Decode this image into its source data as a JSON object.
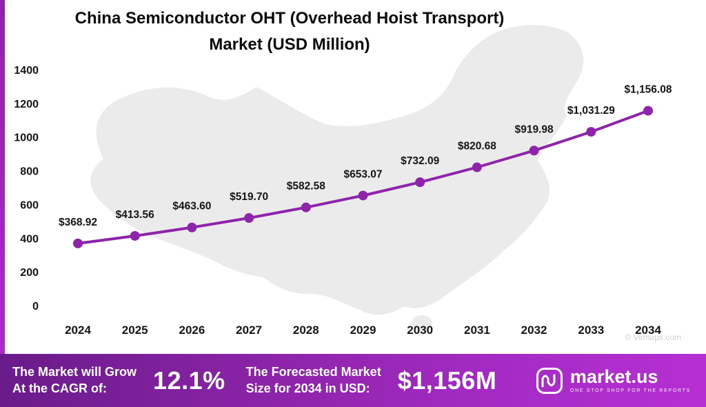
{
  "title": {
    "line1": "China Semiconductor OHT (Overhead Hoist Transport)",
    "line2": "Market (USD Million)"
  },
  "chart_data": {
    "type": "line",
    "title": "China Semiconductor OHT (Overhead Hoist Transport) Market (USD Million)",
    "categories": [
      "2024",
      "2025",
      "2026",
      "2027",
      "2028",
      "2029",
      "2030",
      "2031",
      "2032",
      "2033",
      "2034"
    ],
    "values": [
      368.92,
      413.56,
      463.6,
      519.7,
      582.58,
      653.07,
      732.09,
      820.68,
      919.98,
      1031.29,
      1156.08
    ],
    "point_labels": [
      "$368.92",
      "$413.56",
      "$463.60",
      "$519.70",
      "$582.58",
      "$653.07",
      "$732.09",
      "$820.68",
      "$919.98",
      "$1,031.29",
      "$1,156.08"
    ],
    "xlabel": "",
    "ylabel": "",
    "ylim": [
      0,
      1400
    ],
    "yticks": [
      0,
      200,
      400,
      600,
      800,
      1000,
      1200,
      1400
    ],
    "grid": false,
    "legend": "none",
    "line_color": "#8e24aa",
    "marker_color": "#8e24aa"
  },
  "watermark": "© Vemaps.com",
  "footer": {
    "cagr_label_line1": "The Market will Grow",
    "cagr_label_line2": "At the CAGR of:",
    "cagr_value": "12.1%",
    "forecast_label_line1": "The Forecasted Market",
    "forecast_label_line2": "Size for 2034 in USD:",
    "forecast_value": "$1,156M",
    "brand": "market.us",
    "brand_tagline": "ONE STOP SHOP FOR THE REPORTS"
  },
  "colors": {
    "banner_start": "#6a1b8a",
    "banner_end": "#b62fd2",
    "map_fill": "#ebebeb",
    "text": "#141414"
  }
}
